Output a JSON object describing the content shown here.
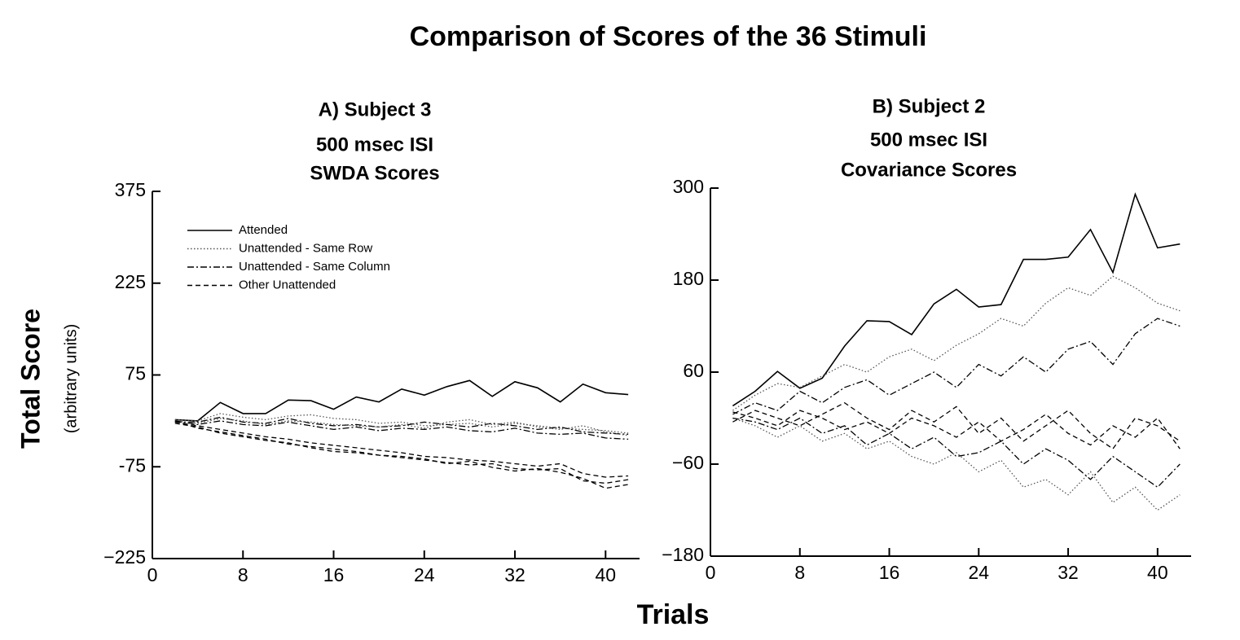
{
  "title": "Comparison of Scores of the 36 Stimuli",
  "ylabel": "Total Score",
  "ylabel_note": "(arbitrary units)",
  "xlabel": "Trials",
  "chart_data": [
    {
      "type": "line",
      "title": [
        "A)  Subject 3",
        "500 msec ISI",
        "SWDA Scores"
      ],
      "x": [
        2,
        4,
        6,
        8,
        10,
        12,
        14,
        16,
        18,
        20,
        22,
        24,
        26,
        28,
        30,
        32,
        34,
        36,
        38,
        40,
        42
      ],
      "xlim": [
        0,
        43
      ],
      "xticks": [
        0,
        8,
        16,
        24,
        32,
        40
      ],
      "ylim": [
        -225,
        375
      ],
      "yticks": [
        375,
        225,
        75,
        -75,
        {
          "value": -225,
          "label": "−225"
        }
      ],
      "legend": "upper left",
      "series": [
        {
          "name": "Attended",
          "color": "#000000",
          "linestyle": "solid",
          "values": [
            2,
            0,
            30,
            12,
            12,
            34,
            33,
            19,
            39,
            31,
            52,
            42,
            56,
            66,
            40,
            64,
            54,
            31,
            60,
            46,
            43
          ]
        },
        {
          "name": "Unattended - Same Row",
          "color": "#555555",
          "linestyle": "dotted",
          "values": [
            2,
            0,
            12,
            6,
            2,
            8,
            10,
            4,
            2,
            -4,
            -2,
            -8,
            -6,
            -4,
            -10,
            -4,
            -8,
            -12,
            -14,
            -16,
            -20
          ]
        },
        {
          "name": "Unattended - Same Column",
          "color": "#000000",
          "linestyle": "dashdot",
          "values": [
            -2,
            -2,
            6,
            -2,
            -4,
            4,
            -4,
            -8,
            -6,
            -10,
            -8,
            -2,
            -6,
            -10,
            -4,
            -8,
            -14,
            -10,
            -18,
            -20,
            -22
          ]
        },
        {
          "name": "Other Unattended",
          "color": "#000000",
          "linestyle": "dashed",
          "values": [
            -2,
            -8,
            -14,
            -20,
            -26,
            -30,
            -36,
            -40,
            -44,
            -48,
            -52,
            -58,
            -60,
            -64,
            -66,
            -70,
            -74,
            -70,
            -86,
            -92,
            -90
          ]
        },
        {
          "color": "#555555",
          "linestyle": "dotted",
          "values": [
            0,
            -4,
            4,
            0,
            -6,
            0,
            -2,
            -6,
            -8,
            -10,
            -6,
            -12,
            -2,
            2,
            -6,
            -2,
            -10,
            -14,
            -8,
            -18,
            -24
          ]
        },
        {
          "color": "#000000",
          "linestyle": "dashdot",
          "values": [
            0,
            -6,
            0,
            -6,
            -8,
            -2,
            -8,
            -14,
            -10,
            -16,
            -12,
            -14,
            -10,
            -16,
            -18,
            -12,
            -20,
            -22,
            -20,
            -28,
            -30
          ]
        },
        {
          "color": "#000000",
          "linestyle": "dashed",
          "values": [
            0,
            -12,
            -18,
            -24,
            -30,
            -38,
            -42,
            -46,
            -50,
            -56,
            -60,
            -64,
            -68,
            -72,
            -70,
            -78,
            -80,
            -78,
            -98,
            -102,
            -96
          ]
        },
        {
          "color": "#000000",
          "linestyle": "dashed",
          "values": [
            -4,
            -10,
            -20,
            -26,
            -32,
            -36,
            -44,
            -50,
            -52,
            -56,
            -58,
            -62,
            -70,
            -66,
            -76,
            -82,
            -78,
            -84,
            -94,
            -110,
            -104
          ]
        }
      ]
    },
    {
      "type": "line",
      "title": [
        "B)  Subject 2",
        "500 msec ISI",
        "Covariance Scores"
      ],
      "x": [
        2,
        4,
        6,
        8,
        10,
        12,
        14,
        16,
        18,
        20,
        22,
        24,
        26,
        28,
        30,
        32,
        34,
        36,
        38,
        40,
        42
      ],
      "xlim": [
        0,
        43
      ],
      "xticks": [
        0,
        8,
        16,
        24,
        32,
        40
      ],
      "ylim": [
        -180,
        300
      ],
      "yticks": [
        300,
        180,
        60,
        {
          "value": -60,
          "label": "−60"
        },
        {
          "value": -180,
          "label": "−180"
        }
      ],
      "series": [
        {
          "color": "#000000",
          "linestyle": "solid",
          "values": [
            16,
            35,
            61,
            39,
            52,
            94,
            127,
            126,
            109,
            149,
            168,
            145,
            148,
            207,
            207,
            210,
            246,
            190,
            292,
            222,
            227
          ]
        },
        {
          "color": "#555555",
          "linestyle": "dotted",
          "values": [
            10,
            30,
            45,
            40,
            55,
            70,
            60,
            80,
            90,
            75,
            95,
            110,
            130,
            120,
            150,
            170,
            160,
            185,
            170,
            150,
            140
          ]
        },
        {
          "color": "#555555",
          "linestyle": "dotted",
          "values": [
            0,
            -10,
            -25,
            -10,
            -30,
            -20,
            -40,
            -30,
            -50,
            -60,
            -45,
            -70,
            -55,
            -90,
            -80,
            -100,
            -70,
            -110,
            -90,
            -120,
            -100
          ]
        },
        {
          "color": "#000000",
          "linestyle": "dashdot",
          "values": [
            5,
            20,
            10,
            35,
            20,
            40,
            50,
            30,
            45,
            60,
            40,
            70,
            55,
            80,
            60,
            90,
            100,
            70,
            110,
            130,
            120
          ]
        },
        {
          "color": "#000000",
          "linestyle": "dashdot",
          "values": [
            0,
            -5,
            -15,
            0,
            -20,
            -10,
            -35,
            -20,
            -40,
            -25,
            -50,
            -45,
            -30,
            -60,
            -40,
            -55,
            -80,
            -50,
            -70,
            -90,
            -60
          ]
        },
        {
          "color": "#000000",
          "linestyle": "dashed",
          "values": [
            8,
            0,
            -10,
            10,
            0,
            -15,
            -5,
            -20,
            0,
            -10,
            -25,
            -5,
            -30,
            -15,
            5,
            -20,
            -35,
            -10,
            -25,
            0,
            -40
          ]
        },
        {
          "color": "#000000",
          "linestyle": "dashed",
          "values": [
            -5,
            10,
            0,
            -10,
            5,
            20,
            0,
            -15,
            10,
            -5,
            15,
            -20,
            0,
            -30,
            -10,
            10,
            -20,
            -40,
            0,
            -10,
            -30
          ]
        }
      ]
    }
  ]
}
